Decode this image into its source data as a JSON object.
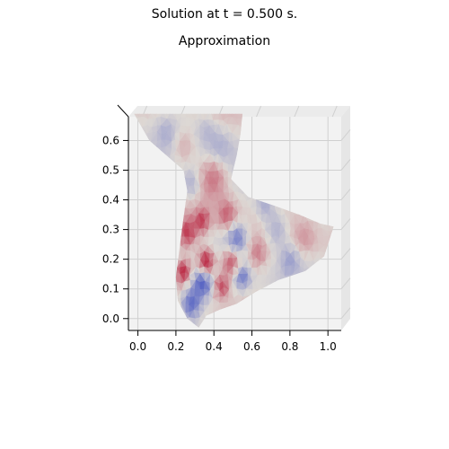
{
  "figure": {
    "suptitle": "Solution at t = 0.500 s.",
    "title": "Approximation"
  },
  "chart_data": {
    "type": "heatmap",
    "subtype": "3d-surface-top-view",
    "colormap": "coolwarm",
    "colors": {
      "pane": "#f2f2f2",
      "grid": "#d0d0d0",
      "neutral": "#ddd8d4",
      "cool": "#3b4cc0",
      "warm": "#b40426"
    },
    "x_ticks": [
      "0.0",
      "0.2",
      "0.4",
      "0.6",
      "0.8",
      "1.0"
    ],
    "y_ticks": [
      "0.0",
      "0.1",
      "0.2",
      "0.3",
      "0.4",
      "0.5",
      "0.6"
    ],
    "xlim": [
      -0.05,
      1.07
    ],
    "ylim": [
      -0.04,
      0.68
    ],
    "grid": true,
    "domain_outline": [
      [
        -0.02,
        0.69
      ],
      [
        0.55,
        0.69
      ],
      [
        0.54,
        0.62
      ],
      [
        0.52,
        0.55
      ],
      [
        0.49,
        0.47
      ],
      [
        0.58,
        0.41
      ],
      [
        0.72,
        0.38
      ],
      [
        0.85,
        0.35
      ],
      [
        0.96,
        0.32
      ],
      [
        1.03,
        0.31
      ],
      [
        0.98,
        0.21
      ],
      [
        0.88,
        0.16
      ],
      [
        0.74,
        0.13
      ],
      [
        0.62,
        0.09
      ],
      [
        0.52,
        0.05
      ],
      [
        0.43,
        0.03
      ],
      [
        0.36,
        0.01
      ],
      [
        0.32,
        -0.03
      ],
      [
        0.26,
        0.0
      ],
      [
        0.21,
        0.06
      ],
      [
        0.2,
        0.14
      ],
      [
        0.22,
        0.24
      ],
      [
        0.24,
        0.34
      ],
      [
        0.26,
        0.43
      ],
      [
        0.24,
        0.5
      ],
      [
        0.15,
        0.55
      ],
      [
        0.06,
        0.6
      ]
    ],
    "field_features": [
      {
        "x": 0.36,
        "y": 0.19,
        "r": 0.045,
        "v": 1.0
      },
      {
        "x": 0.34,
        "y": 0.12,
        "r": 0.05,
        "v": -0.8
      },
      {
        "x": 0.28,
        "y": 0.05,
        "r": 0.05,
        "v": -0.8
      },
      {
        "x": 0.24,
        "y": 0.16,
        "r": 0.04,
        "v": 0.8
      },
      {
        "x": 0.44,
        "y": 0.11,
        "r": 0.04,
        "v": 0.7
      },
      {
        "x": 0.49,
        "y": 0.19,
        "r": 0.05,
        "v": 0.7
      },
      {
        "x": 0.26,
        "y": 0.29,
        "r": 0.05,
        "v": 0.7
      },
      {
        "x": 0.34,
        "y": 0.33,
        "r": 0.04,
        "v": 0.6
      },
      {
        "x": 0.47,
        "y": 0.35,
        "r": 0.05,
        "v": 0.5
      },
      {
        "x": 0.52,
        "y": 0.27,
        "r": 0.05,
        "v": -0.6
      },
      {
        "x": 0.55,
        "y": 0.14,
        "r": 0.04,
        "v": -0.6
      },
      {
        "x": 0.63,
        "y": 0.22,
        "r": 0.05,
        "v": 0.4
      },
      {
        "x": 0.73,
        "y": 0.3,
        "r": 0.06,
        "v": -0.4
      },
      {
        "x": 0.67,
        "y": 0.38,
        "r": 0.05,
        "v": -0.35
      },
      {
        "x": 0.8,
        "y": 0.2,
        "r": 0.05,
        "v": -0.35
      },
      {
        "x": 0.88,
        "y": 0.27,
        "r": 0.06,
        "v": 0.25
      },
      {
        "x": 0.4,
        "y": 0.48,
        "r": 0.07,
        "v": 0.45
      },
      {
        "x": 0.28,
        "y": 0.45,
        "r": 0.05,
        "v": -0.35
      },
      {
        "x": 0.43,
        "y": 0.58,
        "r": 0.07,
        "v": -0.3
      },
      {
        "x": 0.24,
        "y": 0.58,
        "r": 0.06,
        "v": 0.3
      },
      {
        "x": 0.36,
        "y": 0.64,
        "r": 0.05,
        "v": -0.2
      },
      {
        "x": 0.15,
        "y": 0.63,
        "r": 0.05,
        "v": -0.2
      }
    ]
  }
}
